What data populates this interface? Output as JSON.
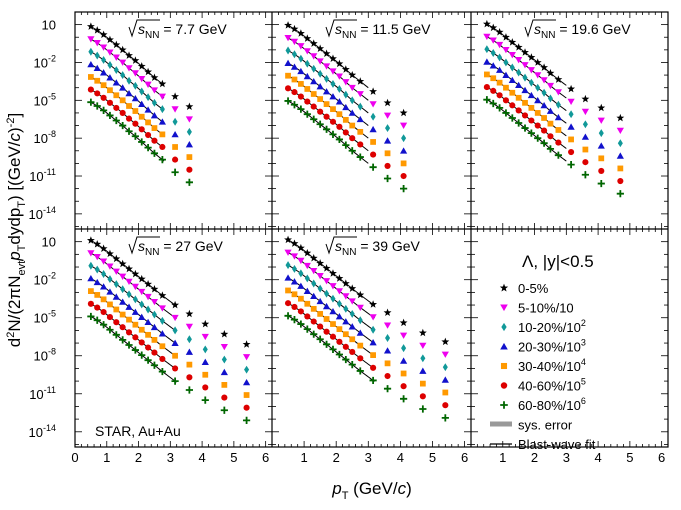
{
  "figure": {
    "ylabel_parts": [
      "d",
      "2",
      "N/(2πN",
      "evt",
      "p",
      "T",
      "dydp",
      "T",
      ") [(GeV/",
      "c",
      ")",
      "-2",
      "]"
    ],
    "xlabel_parts": [
      "p",
      "T",
      " (GeV/",
      "c",
      ")"
    ],
    "xticks": [
      "0",
      "1",
      "2",
      "3",
      "4",
      "5",
      "6"
    ],
    "yticks": [
      {
        "base": "10",
        "exp": "-14"
      },
      {
        "base": "10",
        "exp": "-11"
      },
      {
        "base": "10",
        "exp": "-8"
      },
      {
        "base": "10",
        "exp": "-5"
      },
      {
        "base": "10",
        "exp": "-2"
      },
      {
        "base": "10",
        "exp": ""
      }
    ],
    "experiment_label": "STAR, Au+Au",
    "energy_prefix": "s",
    "energy_sub": "NN"
  },
  "legend": {
    "particle": "Λ",
    "rapidity": ", |y|<0.5",
    "entries": [
      {
        "label": "0-5%",
        "sup": "",
        "marker": "star",
        "color": "#000000"
      },
      {
        "label": "5-10%/10",
        "sup": "",
        "marker": "triangle-down",
        "color": "#ee00ee"
      },
      {
        "label": "10-20%/10",
        "sup": "2",
        "marker": "diamond",
        "color": "#119999"
      },
      {
        "label": "20-30%/10",
        "sup": "3",
        "marker": "triangle-up",
        "color": "#1111cc"
      },
      {
        "label": "30-40%/10",
        "sup": "4",
        "marker": "square",
        "color": "#ff9900"
      },
      {
        "label": "40-60%/10",
        "sup": "5",
        "marker": "circle",
        "color": "#dd0000"
      },
      {
        "label": "60-80%/10",
        "sup": "6",
        "marker": "cross",
        "color": "#006600"
      }
    ],
    "sys_label": "sys. error",
    "fit_label": "Blast-wave fit",
    "sys_color": "#999999",
    "fit_color": "#000000"
  },
  "chart_data": {
    "type": "scatter",
    "xlabel": "pT (GeV/c)",
    "ylabel": "d2N/(2πNevt pT dy dpT) [(GeV/c)^-2]",
    "xlim": [
      0,
      6.2
    ],
    "ylim_log10": [
      -15.2,
      2.0
    ],
    "y_scale": "log",
    "pt": [
      0.5,
      0.7,
      0.9,
      1.1,
      1.3,
      1.5,
      1.7,
      1.9,
      2.1,
      2.3,
      2.5,
      2.75,
      3.15,
      3.6,
      4.1,
      4.7,
      5.4
    ],
    "centrality_scale_log10": [
      0,
      -1,
      -2,
      -3,
      -4,
      -5,
      -6
    ],
    "panels": [
      {
        "energy": "7.7 GeV",
        "log10_yield_0_5": [
          0.85,
          0.55,
          0.2,
          -0.2,
          -0.6,
          -1.0,
          -1.45,
          -1.85,
          -2.3,
          -2.75,
          -3.2,
          -3.7,
          -4.7,
          -5.5
        ],
        "fit_pt_range": [
          0.5,
          2.8
        ]
      },
      {
        "energy": "11.5 GeV",
        "log10_yield_0_5": [
          0.95,
          0.65,
          0.3,
          -0.1,
          -0.5,
          -0.9,
          -1.3,
          -1.7,
          -2.1,
          -2.55,
          -3.0,
          -3.5,
          -4.3,
          -5.2,
          -6.0
        ],
        "fit_pt_range": [
          0.5,
          3.0
        ]
      },
      {
        "energy": "19.6 GeV",
        "log10_yield_0_5": [
          1.05,
          0.75,
          0.4,
          0.0,
          -0.4,
          -0.8,
          -1.2,
          -1.6,
          -2.0,
          -2.4,
          -2.85,
          -3.35,
          -4.1,
          -4.9,
          -5.6,
          -6.4
        ],
        "fit_pt_range": [
          0.5,
          3.0
        ]
      },
      {
        "energy": "27 GeV",
        "log10_yield_0_5": [
          1.1,
          0.8,
          0.45,
          0.05,
          -0.35,
          -0.75,
          -1.15,
          -1.55,
          -1.95,
          -2.35,
          -2.75,
          -3.25,
          -4.0,
          -4.7,
          -5.5,
          -6.3,
          -7.1
        ],
        "fit_pt_range": [
          0.5,
          3.2
        ]
      },
      {
        "energy": "39 GeV",
        "log10_yield_0_5": [
          1.15,
          0.85,
          0.5,
          0.1,
          -0.3,
          -0.7,
          -1.1,
          -1.5,
          -1.9,
          -2.3,
          -2.7,
          -3.2,
          -3.95,
          -4.6,
          -5.4,
          -6.2,
          -6.9
        ],
        "fit_pt_range": [
          0.5,
          3.2
        ]
      }
    ]
  }
}
